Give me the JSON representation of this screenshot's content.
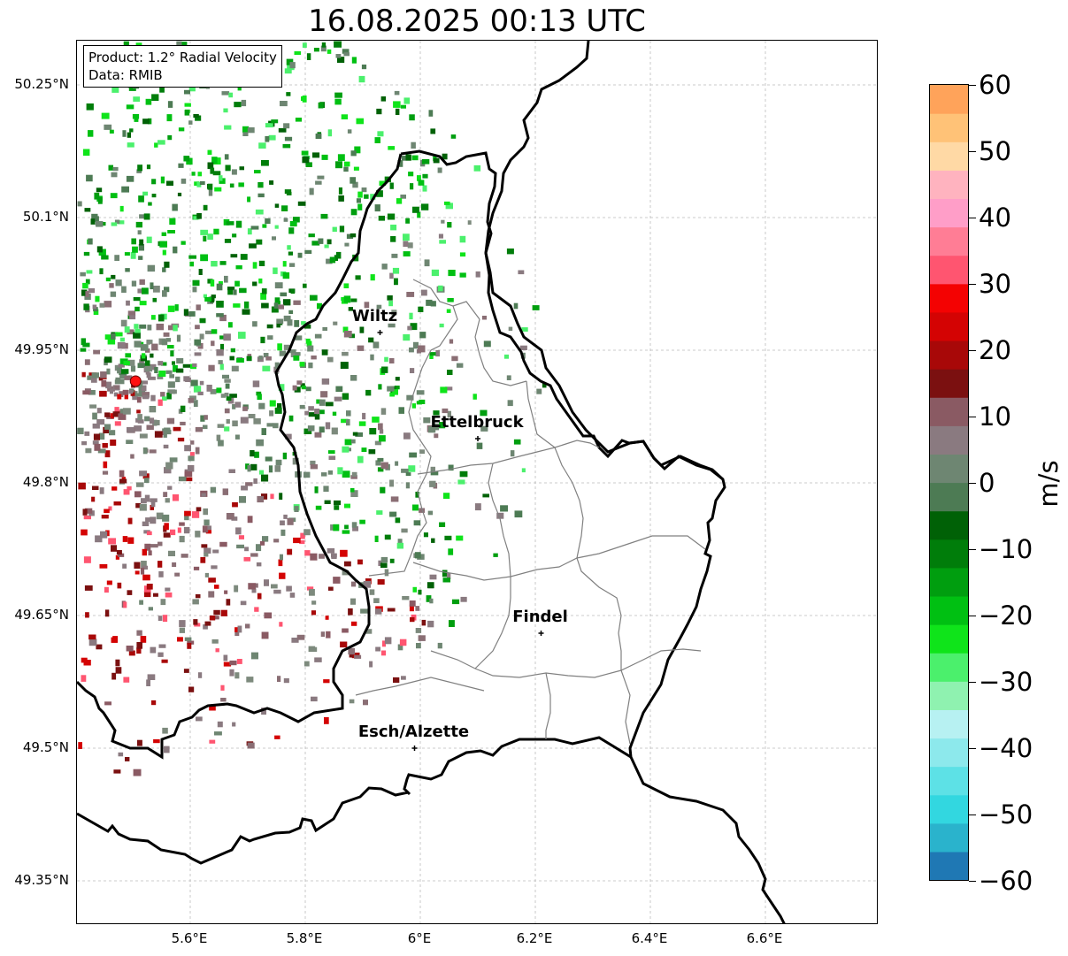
{
  "title": "16.08.2025 00:13 UTC",
  "info_box": {
    "product": "Product: 1.2° Radial Velocity",
    "data_source": "Data: RMIB"
  },
  "lat_ticks": [
    {
      "value": 50.25,
      "label": "50.25°N"
    },
    {
      "value": 50.1,
      "label": "50.1°N"
    },
    {
      "value": 49.95,
      "label": "49.95°N"
    },
    {
      "value": 49.8,
      "label": "49.8°N"
    },
    {
      "value": 49.65,
      "label": "49.65°N"
    },
    {
      "value": 49.5,
      "label": "49.5°N"
    },
    {
      "value": 49.35,
      "label": "49.35°N"
    }
  ],
  "lon_ticks": [
    {
      "value": 5.6,
      "label": "5.6°E"
    },
    {
      "value": 5.8,
      "label": "5.8°E"
    },
    {
      "value": 6.0,
      "label": "6°E"
    },
    {
      "value": 6.2,
      "label": "6.2°E"
    },
    {
      "value": 6.4,
      "label": "6.4°E"
    },
    {
      "value": 6.6,
      "label": "6.6°E"
    }
  ],
  "cities": [
    {
      "name": "Wiltz",
      "lon": 5.93,
      "lat": 49.97
    },
    {
      "name": "Ettelbruck",
      "lon": 6.1,
      "lat": 49.85
    },
    {
      "name": "Findel",
      "lon": 6.21,
      "lat": 49.63
    },
    {
      "name": "Esch/Alzette",
      "lon": 5.99,
      "lat": 49.5
    }
  ],
  "radar_site": {
    "lon": 5.505,
    "lat": 49.915
  },
  "colorbar": {
    "unit": "m/s",
    "min": -60,
    "max": 60,
    "ticks": [
      60,
      50,
      40,
      30,
      20,
      10,
      0,
      -10,
      -20,
      -30,
      -40,
      -50,
      -60
    ],
    "tick_labels": [
      "60",
      "50",
      "40",
      "30",
      "20",
      "10",
      "0",
      "−10",
      "−20",
      "−30",
      "−40",
      "−50",
      "−60"
    ],
    "colors": [
      "#1f78b4",
      "#2ab3cc",
      "#32d7e0",
      "#5de1e6",
      "#8de9ec",
      "#b7f1f2",
      "#8ff2b0",
      "#4bf06c",
      "#0fe41a",
      "#00c012",
      "#009e0f",
      "#007d0a",
      "#006106",
      "#4d7b54",
      "#6e8672",
      "#8a7a80",
      "#8a5a63",
      "#7b1010",
      "#a80808",
      "#d40303",
      "#f40202",
      "#ff5570",
      "#ff7d95",
      "#ff9ec8",
      "#ffb3bf",
      "#ffd9a5",
      "#ffc277",
      "#ffa35a"
    ]
  }
}
